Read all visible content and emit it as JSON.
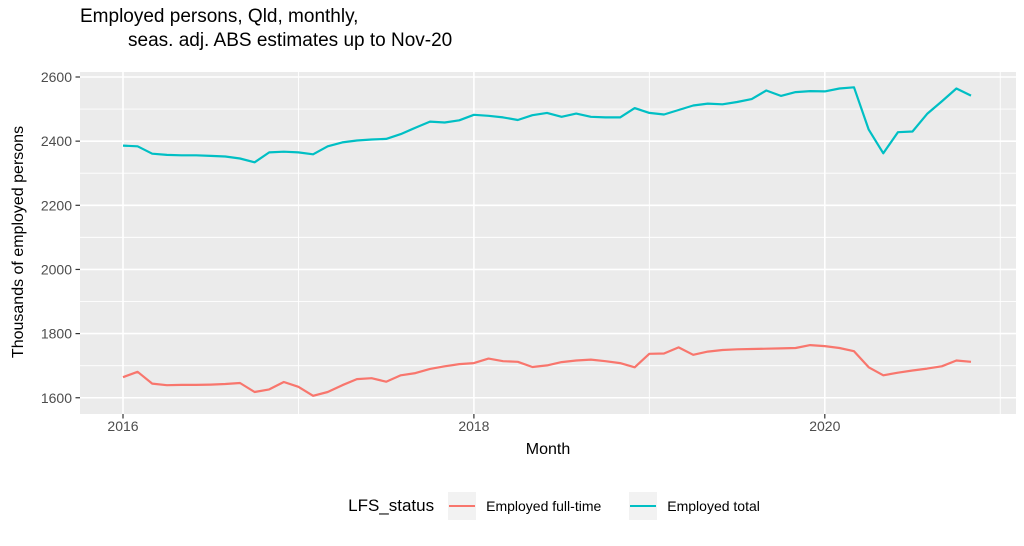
{
  "title": {
    "line1": "Employed persons, Qld, monthly,",
    "line2": "seas. adj. ABS estimates up to Nov-20"
  },
  "axes": {
    "x": {
      "title": "Month",
      "tick_labels": [
        "2016",
        "2018",
        "2020"
      ],
      "tick_years": [
        2016,
        2018,
        2020
      ],
      "minor_years": [
        2017,
        2019,
        2021
      ]
    },
    "y": {
      "title": "Thousands of employed persons",
      "ticks": [
        1600,
        1800,
        2000,
        2200,
        2400,
        2600
      ],
      "minor": [
        1700,
        1900,
        2100,
        2300,
        2500
      ]
    }
  },
  "legend": {
    "title": "LFS_status",
    "items": [
      {
        "label": "Employed full-time",
        "color": "#F8766D"
      },
      {
        "label": "Employed total",
        "color": "#00BFC4"
      }
    ]
  },
  "colors": {
    "background": "#FFFFFF",
    "panel_bg": "#EBEBEB",
    "gridline": "#FFFFFF",
    "tick_mark": "#333333",
    "tick_label": "#4D4D4D",
    "text": "#000000",
    "legend_key_bg": "#F2F2F2",
    "full_time_line": "#F8766D",
    "total_line": "#00BFC4"
  },
  "chart_data": {
    "type": "line",
    "title": "Employed persons, Qld, monthly, seas. adj. ABS estimates up to Nov-20",
    "xlabel": "Month",
    "ylabel": "Thousands of employed persons",
    "x_frequency": "monthly",
    "x_range": [
      "2016-01",
      "2020-11"
    ],
    "y_tick_range": [
      1600,
      2600
    ],
    "legend_title": "LFS_status",
    "legend_position": "bottom",
    "grid": true,
    "months": [
      "2016-01",
      "2016-02",
      "2016-03",
      "2016-04",
      "2016-05",
      "2016-06",
      "2016-07",
      "2016-08",
      "2016-09",
      "2016-10",
      "2016-11",
      "2016-12",
      "2017-01",
      "2017-02",
      "2017-03",
      "2017-04",
      "2017-05",
      "2017-06",
      "2017-07",
      "2017-08",
      "2017-09",
      "2017-10",
      "2017-11",
      "2017-12",
      "2018-01",
      "2018-02",
      "2018-03",
      "2018-04",
      "2018-05",
      "2018-06",
      "2018-07",
      "2018-08",
      "2018-09",
      "2018-10",
      "2018-11",
      "2018-12",
      "2019-01",
      "2019-02",
      "2019-03",
      "2019-04",
      "2019-05",
      "2019-06",
      "2019-07",
      "2019-08",
      "2019-09",
      "2019-10",
      "2019-11",
      "2019-12",
      "2020-01",
      "2020-02",
      "2020-03",
      "2020-04",
      "2020-05",
      "2020-06",
      "2020-07",
      "2020-08",
      "2020-09",
      "2020-10",
      "2020-11"
    ],
    "series": [
      {
        "name": "Employed full-time",
        "color": "#F8766D",
        "values": [
          1664,
          1681,
          1644,
          1639,
          1640,
          1640,
          1641,
          1643,
          1646,
          1618,
          1626,
          1649,
          1634,
          1606,
          1618,
          1639,
          1658,
          1661,
          1650,
          1670,
          1677,
          1690,
          1698,
          1705,
          1708,
          1722,
          1714,
          1712,
          1696,
          1701,
          1711,
          1716,
          1719,
          1714,
          1708,
          1695,
          1737,
          1738,
          1757,
          1734,
          1744,
          1749,
          1751,
          1752,
          1753,
          1754,
          1755,
          1764,
          1761,
          1755,
          1745,
          1695,
          1670,
          1678,
          1685,
          1691,
          1698,
          1716,
          1712
        ]
      },
      {
        "name": "Employed total",
        "color": "#00BFC4",
        "values": [
          2386,
          2384,
          2361,
          2357,
          2356,
          2356,
          2354,
          2352,
          2346,
          2334,
          2365,
          2367,
          2365,
          2359,
          2384,
          2396,
          2402,
          2405,
          2407,
          2422,
          2442,
          2461,
          2458,
          2465,
          2482,
          2479,
          2474,
          2466,
          2481,
          2488,
          2476,
          2486,
          2476,
          2474,
          2474,
          2503,
          2488,
          2483,
          2497,
          2511,
          2517,
          2515,
          2522,
          2531,
          2558,
          2541,
          2553,
          2556,
          2555,
          2564,
          2568,
          2436,
          2362,
          2428,
          2430,
          2485,
          2524,
          2564,
          2542
        ]
      }
    ]
  }
}
